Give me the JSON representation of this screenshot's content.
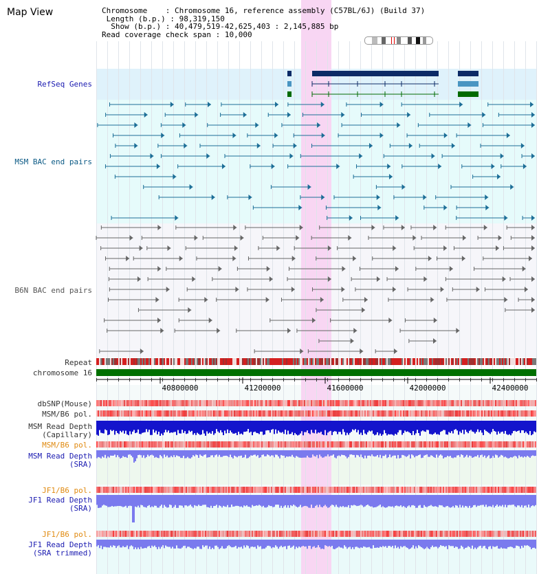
{
  "title": "Map View",
  "header": {
    "chromosome_key": "Chromosome",
    "chromosome_val": "Chromosome 16, reference assembly (C57BL/6J) (Build 37)",
    "length_key": "Length (b.p.)",
    "length_val": "98,319,150",
    "show_key": "Show (b.p.)",
    "show_val": "40,479,519-42,625,403 : 2,145,885 bp",
    "coverage_key": "Read coverage check span",
    "coverage_val": "10,000"
  },
  "tracks": {
    "refseq": "RefSeq Genes",
    "msm_bac": "MSM BAC end pairs",
    "b6n_bac": "B6N BAC end pairs",
    "repeat": "Repeat",
    "chromosome": "chromosome 16",
    "dbsnp": "dbSNP(Mouse)",
    "msm_pol_1": "MSM/B6 pol.",
    "msm_depth_cap_1": "MSM Read Depth",
    "msm_depth_cap_2": "(Capillary)",
    "msm_pol_2": "MSM/B6 pol.",
    "msm_depth_sra_1": "MSM Read Depth",
    "msm_depth_sra_2": "(SRA)",
    "jf1_pol_1": "JF1/B6 pol.",
    "jf1_depth_sra_1": "JF1 Read Depth",
    "jf1_depth_sra_2": "(SRA)",
    "jf1_pol_2": "JF1/B6 pol.",
    "jf1_depth_trim_1": "JF1 Read Depth",
    "jf1_depth_trim_2": "(SRA trimmed)"
  },
  "axis_ticks": [
    "40800000",
    "41200000",
    "41600000",
    "42000000",
    "42400000"
  ],
  "colors": {
    "refseq_bg": "#dff2fb",
    "msm_bg": "#e6fbfb",
    "b6n_bg": "#f6f6fa",
    "highlight": "#f8d6f3",
    "refseq_dark": "#0c2a66",
    "refseq_mid": "#4a95c2",
    "refseq_green": "#006a00",
    "chromosome": "#007000",
    "msm_pair": "#1c6e97",
    "b6n_pair": "#666666",
    "depth_capillary": "#1414cc",
    "depth_sra": "#7a7aee"
  }
}
